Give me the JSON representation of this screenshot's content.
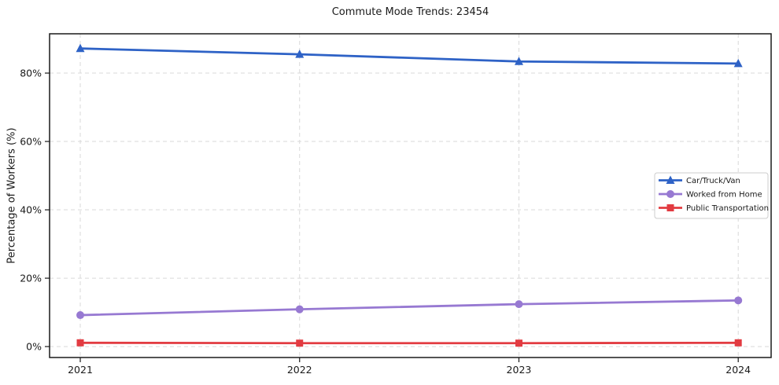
{
  "page": {
    "background": "#ffffff"
  },
  "chart_data": {
    "type": "line",
    "title": "Commute Mode Trends: 23454",
    "xlabel": "",
    "ylabel": "Percentage of Workers (%)",
    "x": [
      2021,
      2022,
      2023,
      2024
    ],
    "x_tick_labels": [
      "2021",
      "2022",
      "2023",
      "2024"
    ],
    "y_ticks": [
      0,
      20,
      40,
      60,
      80
    ],
    "y_tick_labels": [
      "0%",
      "20%",
      "40%",
      "60%",
      "80%"
    ],
    "xlim": [
      2020.86,
      2024.15
    ],
    "ylim": [
      -3.2,
      91.5
    ],
    "grid": true,
    "grid_style": "dashed",
    "legend": {
      "position": "center-right",
      "border_color": "#cccccc",
      "background": "#ffffff"
    },
    "series": [
      {
        "name": "Car/Truck/Van",
        "color": "#2e62c6",
        "marker": "triangle",
        "values": [
          87.2,
          85.5,
          83.4,
          82.8
        ]
      },
      {
        "name": "Worked from Home",
        "color": "#9779d2",
        "marker": "circle",
        "values": [
          9.2,
          10.9,
          12.4,
          13.5
        ]
      },
      {
        "name": "Public Transportation",
        "color": "#e23b41",
        "marker": "square",
        "values": [
          1.1,
          1.0,
          1.0,
          1.1
        ]
      }
    ]
  },
  "colors": {
    "grid": "#d9d9d9",
    "axis": "#1a1a1a",
    "text": "#1a1a1a"
  }
}
